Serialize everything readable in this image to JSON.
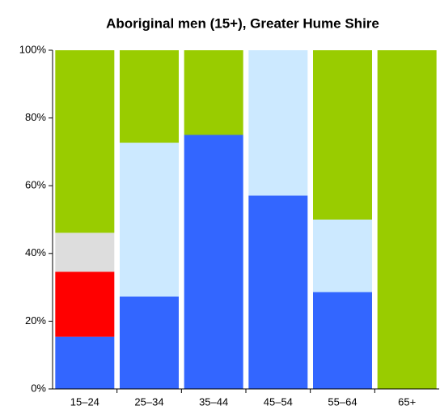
{
  "chart_data": {
    "type": "stacked_bar_100",
    "title": "Aboriginal men (15+), Greater Hume Shire",
    "categories": [
      "15–24",
      "25–34",
      "35–44",
      "45–54",
      "55–64",
      "65+"
    ],
    "series": [
      {
        "color": "#3366ff",
        "values": [
          15.4,
          27.3,
          75,
          57.1,
          28.6,
          0
        ]
      },
      {
        "color": "#ff0000",
        "values": [
          19.2,
          0,
          0,
          0,
          0,
          0
        ]
      },
      {
        "color": "#dddddd",
        "values": [
          11.5,
          0,
          0,
          0,
          0,
          0
        ]
      },
      {
        "color": "#cce9ff",
        "values": [
          0,
          45.4,
          0,
          42.9,
          21.4,
          0
        ]
      },
      {
        "color": "#99cc00",
        "values": [
          53.9,
          27.3,
          25,
          0,
          50,
          100
        ]
      }
    ],
    "ylim": [
      0,
      100
    ],
    "yticks": [
      {
        "value": 0,
        "label": "0%"
      },
      {
        "value": 20,
        "label": "20%"
      },
      {
        "value": 40,
        "label": "40%"
      },
      {
        "value": 60,
        "label": "60%"
      },
      {
        "value": 80,
        "label": "80%"
      },
      {
        "value": 100,
        "label": "100%"
      }
    ]
  }
}
